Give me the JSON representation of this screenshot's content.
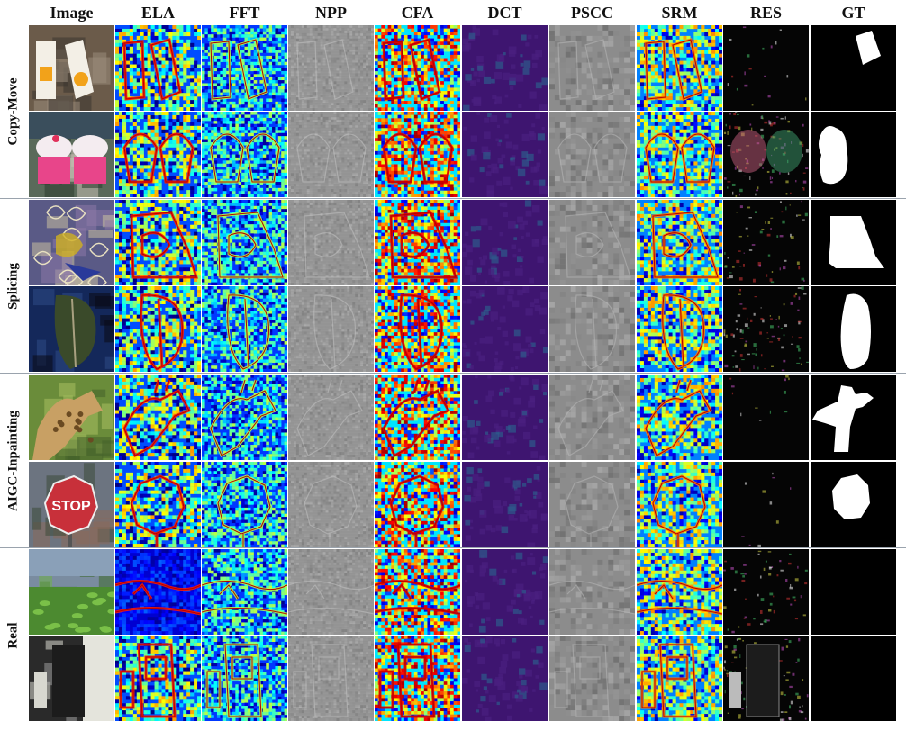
{
  "columns": [
    "Image",
    "ELA",
    "FFT",
    "NPP",
    "CFA",
    "DCT",
    "PSCC",
    "SRM",
    "RES",
    "GT"
  ],
  "categories": [
    {
      "label": "Copy-Move",
      "rows": 2
    },
    {
      "label": "Splicing",
      "rows": 2
    },
    {
      "label": "AIGC-Inpainting",
      "rows": 2
    },
    {
      "label": "Real",
      "rows": 2
    }
  ],
  "samples": [
    {
      "id": "juice-boxes",
      "sign_text": ""
    },
    {
      "id": "cupcake-plush",
      "sign_text": ""
    },
    {
      "id": "paisley-fabric",
      "sign_text": ""
    },
    {
      "id": "leaf-on-screen",
      "sign_text": ""
    },
    {
      "id": "giraffe",
      "sign_text": ""
    },
    {
      "id": "stop-sign",
      "sign_text": "STOP"
    },
    {
      "id": "grass-landscape",
      "sign_text": ""
    },
    {
      "id": "office-printer",
      "sign_text": ""
    }
  ],
  "colors": {
    "jet_low": "#00108c",
    "jet_mid": "#1c6cff",
    "jet_high": "#e83a14",
    "dct_purple": "#3e1570",
    "gray_map": "#8d8d8d",
    "gt_black": "#000000",
    "gt_white": "#ffffff"
  }
}
